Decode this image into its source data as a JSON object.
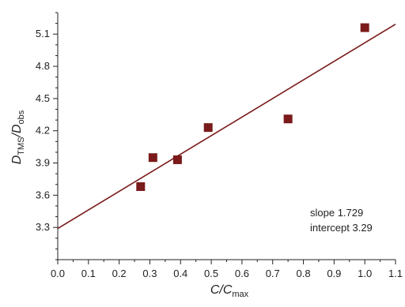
{
  "chart_data": {
    "type": "scatter",
    "title": "",
    "xlabel": {
      "main": "C/C",
      "sub": "max"
    },
    "ylabel": {
      "d1": "D",
      "s1": "TMS",
      "slash": "/",
      "d2": "D",
      "s2": "obs"
    },
    "xlim": [
      0.0,
      1.1
    ],
    "ylim": [
      3.0,
      5.3
    ],
    "xticks": [
      0.0,
      0.1,
      0.2,
      0.3,
      0.4,
      0.5,
      0.6,
      0.7,
      0.8,
      0.9,
      1.0,
      1.1
    ],
    "xtick_labels": [
      "0.0",
      "0.1",
      "0.2",
      "0.3",
      "0.4",
      "0.5",
      "0.6",
      "0.7",
      "0.8",
      "0.9",
      "1.0",
      "1.1"
    ],
    "yticks": [
      3.3,
      3.6,
      3.9,
      4.2,
      4.5,
      4.8,
      5.1
    ],
    "ytick_labels": [
      "3.3",
      "3.6",
      "3.9",
      "4.2",
      "4.5",
      "4.8",
      "5.1"
    ],
    "grid": false,
    "series": [
      {
        "marker": "square",
        "color": "#7a1a1a",
        "points": [
          {
            "x": 0.27,
            "y": 3.68
          },
          {
            "x": 0.31,
            "y": 3.95
          },
          {
            "x": 0.39,
            "y": 3.93
          },
          {
            "x": 0.49,
            "y": 4.23
          },
          {
            "x": 0.75,
            "y": 4.31
          },
          {
            "x": 1.0,
            "y": 5.16
          }
        ]
      }
    ],
    "fit_line": {
      "slope": 1.729,
      "intercept": 3.29,
      "color": "#7a1a1a"
    },
    "annotations": {
      "slope_text": "slope 1.729",
      "intercept_text": "intercept 3.29"
    }
  }
}
